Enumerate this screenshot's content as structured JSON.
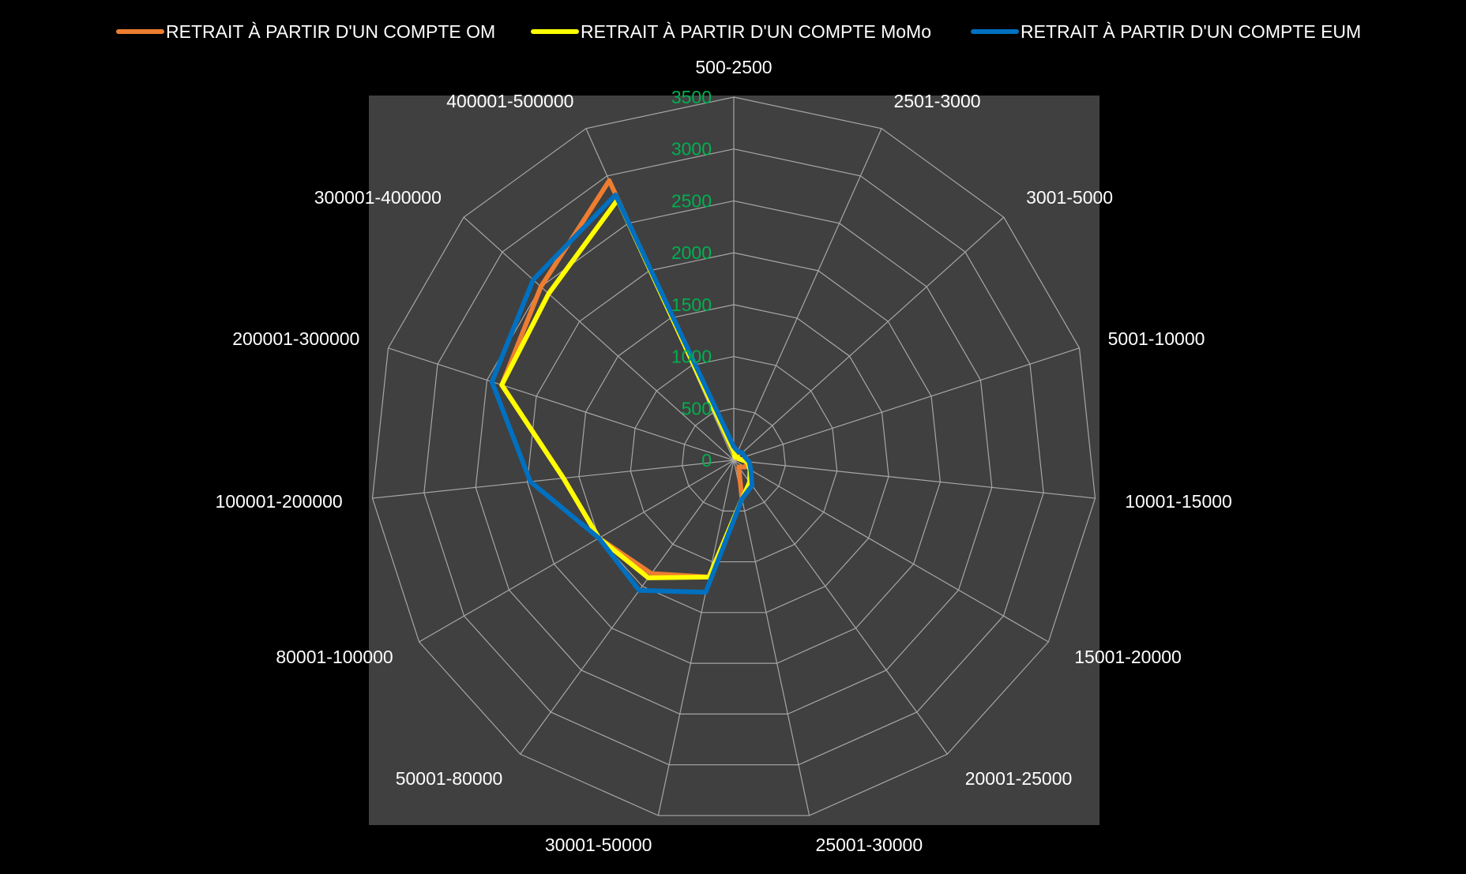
{
  "colors": {
    "background": "#000000",
    "plot_area": "#404040",
    "grid": "#a6a6a6",
    "tick_labels": "#00b050",
    "text": "#ffffff"
  },
  "chart_data": {
    "type": "radar",
    "title": "",
    "legend_position": "top",
    "radial_range": [
      0,
      3500
    ],
    "radial_ticks": [
      0,
      500,
      1000,
      1500,
      2000,
      2500,
      3000,
      3500
    ],
    "radial_tick_labels": [
      "0",
      "500",
      "1000",
      "1500",
      "2000",
      "2500",
      "3000",
      "3500"
    ],
    "grid": true,
    "categories": [
      "500-2500",
      "2501-3000",
      "3001-5000",
      "5001-10000",
      "10001-15000",
      "15001-20000",
      "20001-25000",
      "25001-30000",
      "30001-50000",
      "50001-80000",
      "80001-100000",
      "100001-200000",
      "200001-300000",
      "300001-400000",
      "400001-500000"
    ],
    "series": [
      {
        "name": "RETRAIT À PARTIR D'UN COMPTE  OM",
        "color": "#ed7d31",
        "values": [
          80,
          40,
          45,
          45,
          130,
          130,
          80,
          380,
          1150,
          1350,
          1500,
          1650,
          2350,
          2500,
          2950
        ]
      },
      {
        "name": "RETRAIT À PARTIR D'UN COMPTE  MoMo",
        "color": "#ffff00",
        "values": [
          80,
          30,
          50,
          50,
          130,
          180,
          260,
          380,
          1150,
          1400,
          1500,
          1650,
          2350,
          2400,
          2750
        ]
      },
      {
        "name": "RETRAIT À PARTIR D'UN COMPTE  EUM",
        "color": "#0070c0",
        "values": [
          130,
          95,
          110,
          110,
          150,
          190,
          300,
          380,
          1300,
          1550,
          1500,
          1970,
          2450,
          2600,
          2800
        ]
      }
    ]
  }
}
